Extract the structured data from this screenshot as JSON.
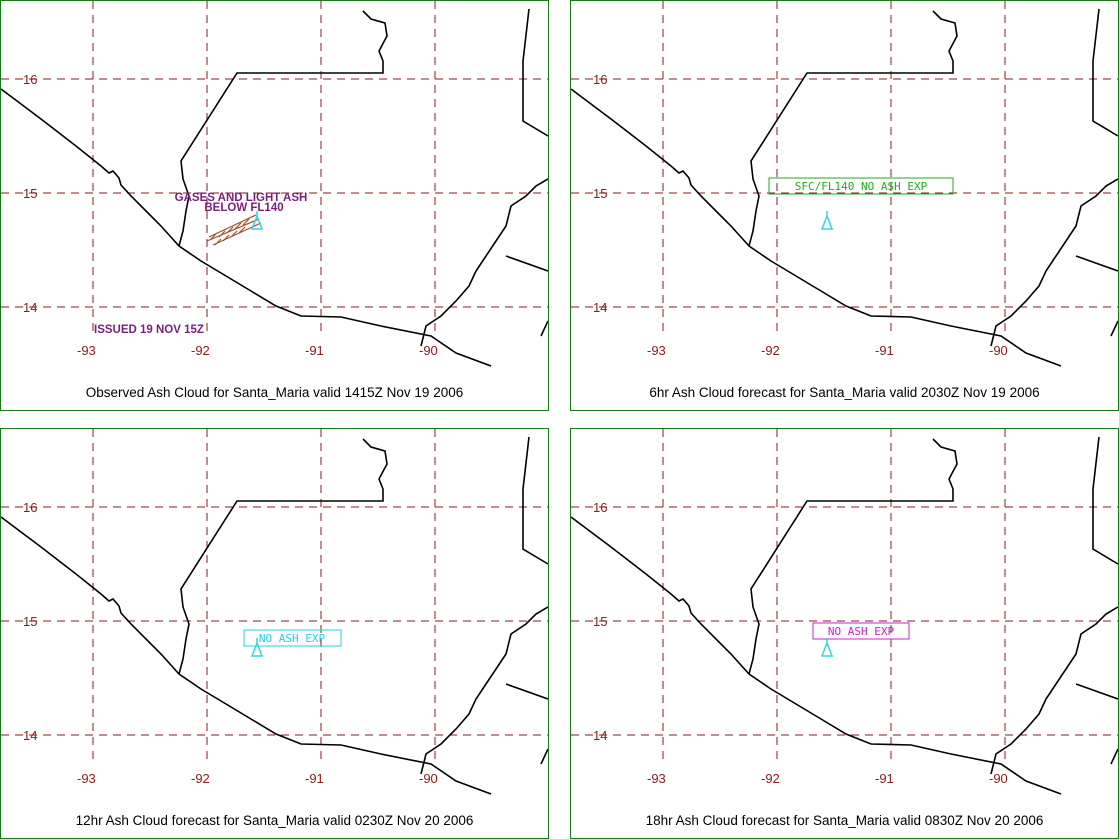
{
  "colors": {
    "border": "#1a7a1a",
    "grid": "#8b1a1a",
    "coast": "#000000",
    "volcano": "#33d6e0",
    "observed_text": "#7a1f7a",
    "ash_line": "#a0522d",
    "text_6hr": "#22aa22",
    "text_12hr": "#22d3e0",
    "text_18hr": "#cc22cc"
  },
  "lon_labels": [
    "-93",
    "-92",
    "-91",
    "-90"
  ],
  "lat_labels": [
    "16",
    "15",
    "14"
  ],
  "panels": [
    {
      "caption": "Observed Ash Cloud for Santa_Maria valid 1415Z Nov 19 2006",
      "annotation_line1": "GASES AND LIGHT ASH",
      "annotation_line2": "BELOW FL140",
      "issued": "ISSUED 19 NOV 15Z"
    },
    {
      "caption": "6hr Ash Cloud forecast for Santa_Maria valid 2030Z Nov 19 2006",
      "box_label": "SFC/FL140 NO ASH EXP"
    },
    {
      "caption": "12hr Ash Cloud forecast for Santa_Maria valid 0230Z Nov 20 2006",
      "box_label": "NO ASH EXP"
    },
    {
      "caption": "18hr Ash Cloud forecast for Santa_Maria valid 0830Z Nov 20 2006",
      "box_label": "NO ASH EXP"
    }
  ]
}
